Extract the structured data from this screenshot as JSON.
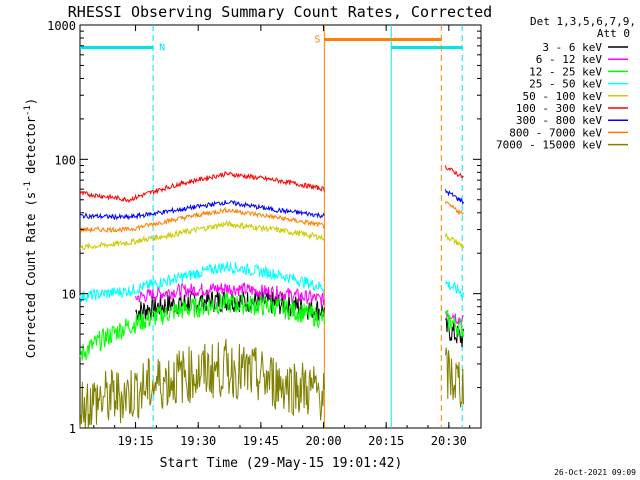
{
  "chart_data": {
    "type": "line",
    "title": "RHESSI Observing Summary Count Rates, Corrected",
    "xlabel": "Start Time (29-May-15 19:01:42)",
    "ylabel_main": "Corrected Count Rate (s",
    "ylabel_sup1": "-1",
    "ylabel_mid": " detector",
    "ylabel_sup2": "-1",
    "ylabel_end": ")",
    "y_scale": "log",
    "ylim": [
      1,
      1000
    ],
    "xlim_minutes": [
      0,
      96
    ],
    "x_tick_labels": [
      "19:15",
      "19:30",
      "19:45",
      "20:00",
      "20:15",
      "20:30"
    ],
    "x_tick_minutes": [
      13.3,
      28.3,
      43.3,
      58.3,
      73.3,
      88.3
    ],
    "y_tick_labels": [
      "1",
      "10",
      "100",
      "1000"
    ],
    "y_tick_values": [
      1,
      10,
      100,
      1000
    ],
    "legend_title": "Det 1,3,5,6,7,9,",
    "legend_subtitle": "Att 0",
    "legend_placement": "right",
    "flags": [
      {
        "label": "N",
        "start": 0,
        "end": 17.5,
        "level": 680,
        "color": "#00e5ee"
      },
      {
        "label": "S",
        "start": 58.5,
        "end": 86.5,
        "level": 780,
        "color": "#ff7f00"
      },
      {
        "label": "",
        "start": 74.5,
        "end": 91.5,
        "level": 680,
        "color": "#00e5ee"
      }
    ],
    "vertical_lines": [
      {
        "minute": 17.5,
        "color": "#00e5ee",
        "style": "dashed"
      },
      {
        "minute": 58.5,
        "color": "#ff7f00",
        "style": "solid"
      },
      {
        "minute": 74.5,
        "color": "#00e5ee",
        "style": "solid"
      },
      {
        "minute": 86.5,
        "color": "#ff7f00",
        "style": "dashed"
      },
      {
        "minute": 91.5,
        "color": "#00e5ee",
        "style": "dashed"
      }
    ],
    "data_gap_minutes": [
      58.5,
      87.5
    ],
    "series": [
      {
        "name": "3 - 6 keV",
        "color": "#000000",
        "values": [
          6.5,
          7.2,
          8.5,
          9.0,
          8.5,
          7.5,
          5.5
        ],
        "noise": 0.2,
        "start": 13.3
      },
      {
        "name": "6 - 12 keV",
        "color": "#ff00ff",
        "values": [
          8.5,
          9.2,
          10.5,
          11.0,
          10.2,
          9.0,
          7.5
        ],
        "noise": 0.12,
        "start": 13.3
      },
      {
        "name": "12 - 25 keV",
        "color": "#00ff00",
        "values": [
          3.5,
          5.8,
          7.5,
          8.5,
          8.0,
          6.5,
          6.5
        ],
        "noise": 0.18,
        "start": 0
      },
      {
        "name": "25 - 50 keV",
        "color": "#00ffff",
        "values": [
          9.5,
          10.5,
          13.0,
          16.0,
          14.0,
          11.0,
          12.0
        ],
        "noise": 0.1,
        "start": 0
      },
      {
        "name": "50 - 100 keV",
        "color": "#cccc00",
        "values": [
          22,
          24,
          28,
          33,
          30,
          26,
          27
        ],
        "noise": 0.05,
        "start": 0
      },
      {
        "name": "100 - 300 keV",
        "color": "#ff0000",
        "values": [
          56,
          50,
          65,
          78,
          70,
          60,
          88
        ],
        "noise": 0.04,
        "start": 0
      },
      {
        "name": "300 - 800 keV",
        "color": "#0000ff",
        "values": [
          38,
          37,
          42,
          48,
          42,
          38,
          58
        ],
        "noise": 0.04,
        "start": 0
      },
      {
        "name": "800 - 7000 keV",
        "color": "#ff7f00",
        "values": [
          30,
          30,
          36,
          42,
          37,
          32,
          47
        ],
        "noise": 0.04,
        "start": 0
      },
      {
        "name": "7000 - 15000 keV",
        "color": "#808000",
        "values": [
          1.5,
          1.8,
          2.4,
          2.8,
          2.2,
          1.8,
          2.5
        ],
        "noise": 0.5,
        "start": 0
      }
    ],
    "timestamp": "26-Oct-2021 09:09"
  }
}
